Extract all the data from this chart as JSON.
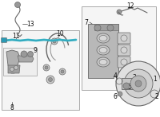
{
  "bg_color": "#ffffff",
  "part_color_dark": "#666666",
  "part_color_mid": "#999999",
  "part_color_light": "#cccccc",
  "highlight_color": "#3ab5c8",
  "line_color": "#444444",
  "box_edge_color": "#aaaaaa",
  "fig_width": 2.0,
  "fig_height": 1.47,
  "dpi": 100
}
